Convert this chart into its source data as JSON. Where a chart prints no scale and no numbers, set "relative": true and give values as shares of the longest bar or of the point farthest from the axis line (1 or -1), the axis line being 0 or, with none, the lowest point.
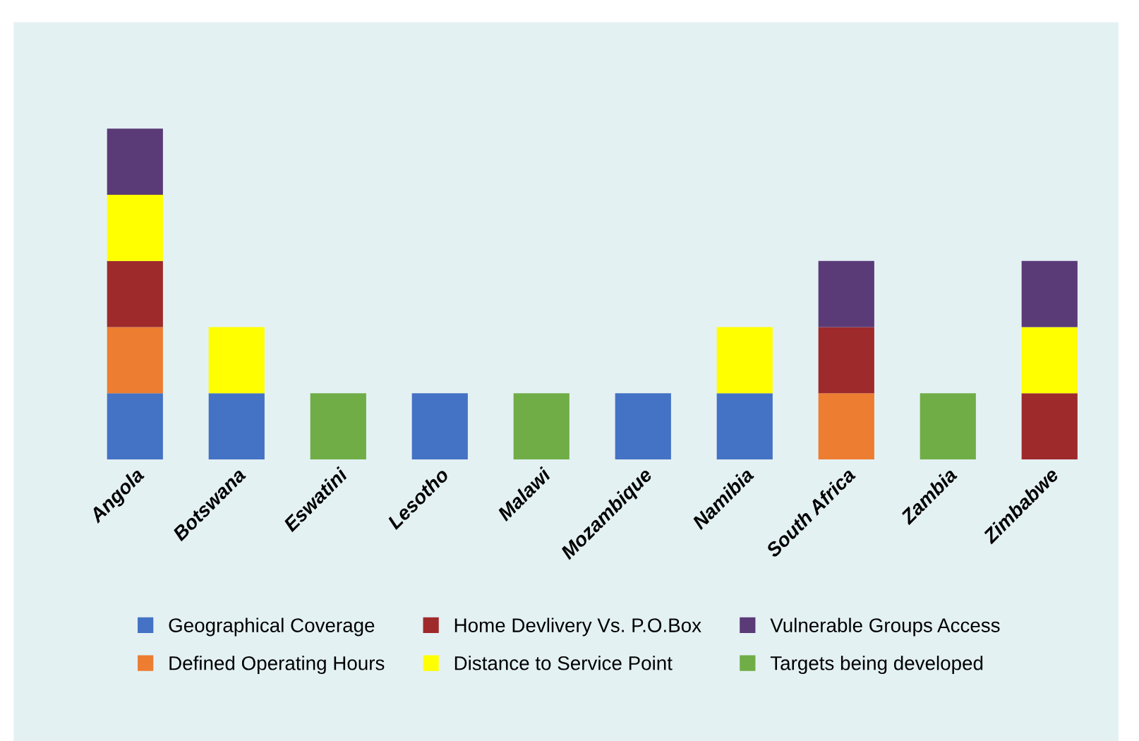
{
  "chart_data": {
    "type": "bar",
    "stacked": true,
    "relative": true,
    "legend": "bottom",
    "categories": [
      "Angola",
      "Botswana",
      "Eswatini",
      "Lesotho",
      "Malawi",
      "Mozambique",
      "Namibia",
      "South Africa",
      "Zambia",
      "Zimbabwe"
    ],
    "series": [
      {
        "name": "Geographical Coverage",
        "color": "#4472c4",
        "values": [
          0.2,
          0.2,
          null,
          0.2,
          null,
          0.2,
          0.2,
          null,
          null,
          null
        ]
      },
      {
        "name": "Defined Operating Hours",
        "color": "#ed7d31",
        "values": [
          0.2,
          null,
          null,
          null,
          null,
          null,
          null,
          0.2,
          null,
          null
        ]
      },
      {
        "name": "Home Devlivery Vs. P.O.Box",
        "color": "#9e2a2b",
        "values": [
          0.2,
          null,
          null,
          null,
          null,
          null,
          null,
          0.2,
          null,
          0.2
        ]
      },
      {
        "name": "Distance to Service Point",
        "color": "#ffff00",
        "values": [
          0.2,
          0.2,
          null,
          null,
          null,
          null,
          0.2,
          null,
          null,
          0.2
        ]
      },
      {
        "name": "Vulnerable Groups Access",
        "color": "#5b3a78",
        "values": [
          0.2,
          null,
          null,
          null,
          null,
          null,
          null,
          0.2,
          null,
          0.2
        ]
      },
      {
        "name": "Targets being developed",
        "color": "#70ad47",
        "values": [
          null,
          null,
          0.2,
          null,
          0.2,
          null,
          null,
          null,
          0.2,
          null
        ]
      }
    ]
  }
}
